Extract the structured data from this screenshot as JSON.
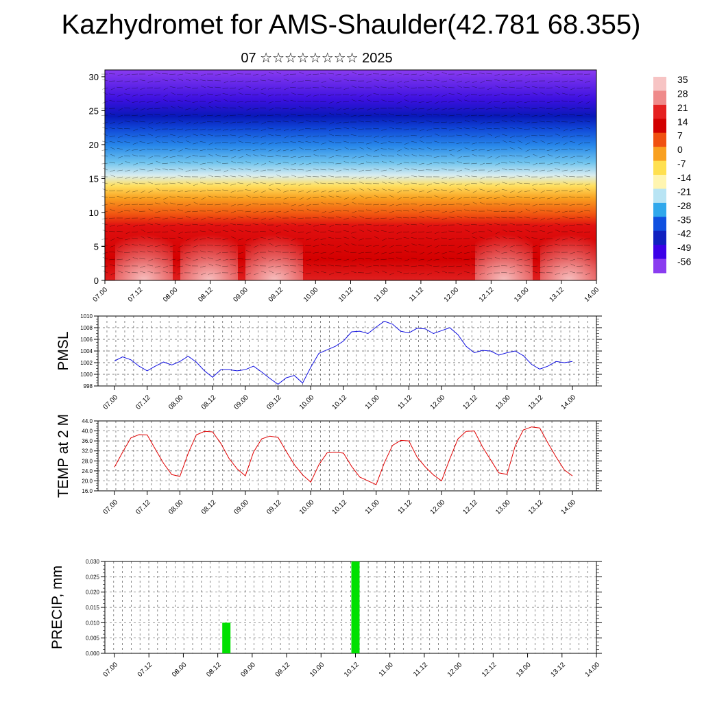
{
  "title": "Kazhydromet for AMS-Shaulder(42.781 68.355)",
  "subtitle": "07 ☆☆☆☆☆☆☆☆ 2025",
  "time_labels": [
    "07.00",
    "07.12",
    "08.00",
    "08.12",
    "09.00",
    "09.12",
    "10.00",
    "10.12",
    "11.00",
    "11.12",
    "12.00",
    "12.12",
    "13.00",
    "13.12",
    "14.00"
  ],
  "chart_data": [
    {
      "type": "heatmap",
      "name": "vertical-section",
      "y_ticks": [
        0,
        5,
        10,
        15,
        20,
        25,
        30
      ],
      "ylim": [
        0,
        31
      ],
      "colorbar": {
        "labels": [
          "35",
          "28",
          "21",
          "14",
          "7",
          "0",
          "-7",
          "-14",
          "-21",
          "-28",
          "-35",
          "-42",
          "-49",
          "-56"
        ],
        "colors": [
          "#f7c4c4",
          "#ef8a8a",
          "#e52020",
          "#d20000",
          "#f05010",
          "#f9a020",
          "#ffe050",
          "#fff5b0",
          "#b8e4f4",
          "#30a8ec",
          "#1050e0",
          "#1020c0",
          "#3c00e8",
          "#8a3cf0"
        ]
      }
    },
    {
      "type": "line",
      "name": "pmsl",
      "ylabel": "PMSL",
      "ylim": [
        998,
        1010
      ],
      "y_ticks": [
        998,
        1000,
        1002,
        1004,
        1006,
        1008,
        1010
      ],
      "y_tick_labels": [
        "998",
        "1000",
        "1002",
        "1004",
        "1006",
        "1008",
        "1010"
      ],
      "color": "#1010e0",
      "x": [
        0,
        3,
        6,
        9,
        12,
        15,
        18,
        21,
        24,
        27,
        30,
        33,
        36,
        39,
        42,
        45,
        48,
        51,
        54,
        57,
        60,
        63,
        66,
        69,
        72,
        75,
        78,
        81,
        84,
        87,
        90,
        93,
        96,
        99,
        102,
        105,
        108,
        111,
        114,
        117,
        120,
        123,
        126,
        129,
        132,
        135,
        138,
        141,
        144,
        147,
        150,
        153,
        156,
        159,
        162,
        165,
        168
      ],
      "values": [
        1002.3,
        1003.0,
        1002.5,
        1001.4,
        1000.6,
        1001.4,
        1002.1,
        1001.6,
        1002.2,
        1003.1,
        1002.1,
        1000.6,
        999.5,
        1000.8,
        1000.8,
        1000.6,
        1000.8,
        1001.4,
        1000.4,
        999.3,
        998.3,
        999.4,
        999.8,
        998.5,
        1001.2,
        1003.6,
        1004.2,
        1004.8,
        1005.7,
        1007.3,
        1007.4,
        1007.0,
        1008.1,
        1009.1,
        1008.6,
        1007.4,
        1007.1,
        1007.9,
        1007.8,
        1007.0,
        1007.5,
        1008.0,
        1006.8,
        1004.8,
        1003.7,
        1004.1,
        1004.0,
        1003.3,
        1003.7,
        1004.0,
        1003.2,
        1001.7,
        1000.9,
        1001.4,
        1002.2,
        1002.0,
        1002.2
      ]
    },
    {
      "type": "line",
      "name": "temp-2m",
      "ylabel": "TEMP at 2 M",
      "ylim": [
        16,
        44
      ],
      "y_ticks": [
        16,
        20,
        24,
        28,
        32,
        36,
        40,
        44
      ],
      "y_tick_labels": [
        "16.0",
        "20.0",
        "24.0",
        "28.0",
        "32.0",
        "36.0",
        "40.0",
        "44.0"
      ],
      "color": "#e00000",
      "x": [
        0,
        3,
        6,
        9,
        12,
        15,
        18,
        21,
        24,
        27,
        30,
        33,
        36,
        39,
        42,
        45,
        48,
        51,
        54,
        57,
        60,
        63,
        66,
        69,
        72,
        75,
        78,
        81,
        84,
        87,
        90,
        93,
        96,
        99,
        102,
        105,
        108,
        111,
        114,
        117,
        120,
        123,
        126,
        129,
        132,
        135,
        138,
        141,
        144,
        147,
        150,
        153,
        156,
        159,
        162,
        165,
        168
      ],
      "values": [
        25.5,
        31.5,
        37.2,
        38.5,
        38.4,
        32.7,
        27.0,
        22.5,
        21.8,
        31.0,
        38.4,
        39.8,
        39.6,
        35.0,
        29.0,
        24.8,
        22.0,
        31.5,
        36.8,
        37.9,
        37.4,
        31.8,
        26.5,
        22.4,
        19.5,
        26.5,
        31.2,
        31.5,
        31.1,
        25.8,
        21.5,
        20.0,
        18.5,
        27.2,
        34.2,
        36.2,
        36.0,
        29.5,
        25.6,
        22.4,
        20.0,
        28.8,
        36.8,
        39.8,
        40.0,
        33.6,
        28.4,
        23.2,
        22.6,
        34.0,
        40.4,
        41.6,
        41.2,
        35.2,
        29.6,
        24.4,
        22.0
      ]
    },
    {
      "type": "bar",
      "name": "precip",
      "ylabel": "PRECIP, mm",
      "ylim": [
        0,
        0.03
      ],
      "y_ticks": [
        0,
        0.005,
        0.01,
        0.015,
        0.02,
        0.025,
        0.03
      ],
      "y_tick_labels": [
        "0.000",
        "0.005",
        "0.010",
        "0.015",
        "0.020",
        "0.025",
        "0.030"
      ],
      "color": "#00e000",
      "x": [
        39,
        84
      ],
      "values": [
        0.01,
        0.03
      ]
    }
  ]
}
